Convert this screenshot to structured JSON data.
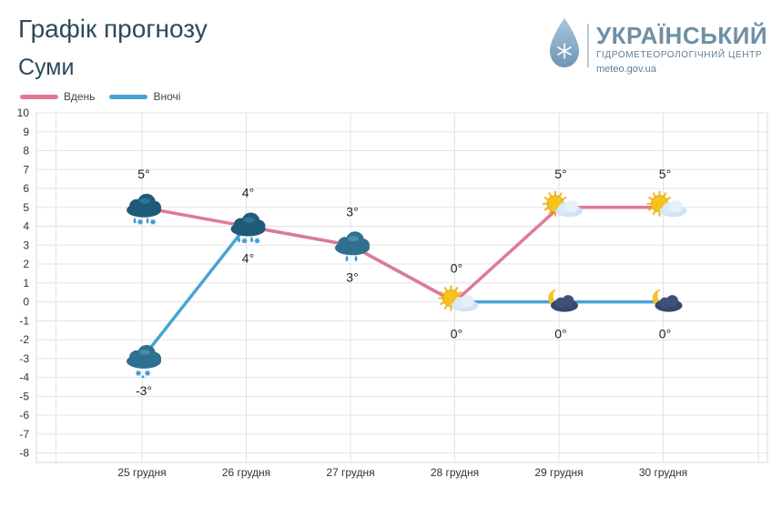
{
  "header": {
    "title": "Графік прогнозу",
    "city": "Суми"
  },
  "logo": {
    "name": "УКРАЇНСЬКИЙ",
    "subtitle": "ГІДРОМЕТЕОРОЛОГІЧНИЙ ЦЕНТР",
    "site": "meteo.gov.ua"
  },
  "colors": {
    "day": "#e07a92",
    "night": "#4aa3d6"
  },
  "chart_data": {
    "type": "line",
    "categories": [
      "25 грудня",
      "26 грудня",
      "27 грудня",
      "28 грудня",
      "29 грудня",
      "30 грудня"
    ],
    "ylim": [
      -8,
      10
    ],
    "yticks": [
      10,
      9,
      8,
      7,
      6,
      5,
      4,
      3,
      2,
      1,
      0,
      -1,
      -2,
      -3,
      -4,
      -5,
      -6,
      -7,
      -8
    ],
    "grid": true,
    "legend_position": "top-left",
    "series": [
      {
        "name": "Вдень",
        "values": [
          5,
          4,
          3,
          0,
          5,
          5
        ],
        "labels": [
          "5°",
          "4°",
          "3°",
          "0°",
          "5°",
          "5°"
        ],
        "icons": [
          "snow-rain-cloud-icon",
          "snow-rain-cloud-icon",
          "rain-cloud-icon",
          "sun-cloud-icon",
          "sun-cloud-icon",
          "sun-cloud-icon"
        ]
      },
      {
        "name": "Вночі",
        "values": [
          -3,
          4,
          3,
          0,
          0,
          0
        ],
        "labels": [
          "-3°",
          "4°",
          "3°",
          "0°",
          "0°",
          "0°"
        ],
        "icons": [
          "snow-cloud-icon",
          "snow-rain-cloud-icon",
          "rain-cloud-icon",
          "sun-cloud-icon",
          "moon-cloud-icon",
          "moon-cloud-icon"
        ]
      }
    ]
  }
}
